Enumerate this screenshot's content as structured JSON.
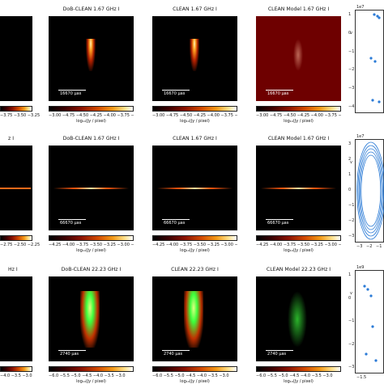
{
  "rows": [
    {
      "id": "row1",
      "titles": [
        "DoB-CLEAN 1.67 GHz I",
        "CLEAN 1.67 GHz I",
        "CLEAN Model 1.67 GHz I"
      ],
      "partial_title": "",
      "scalebar": "16670 μas",
      "cbar_ticks_left": "−3.75  −3.50  −3.25",
      "cbar_ticks": "−3.00 −4.75 −4.50 −4.25 −4.00 −3.75 −3.50 −3.25",
      "cbar_label": "log₁₀(Jy / pixel)",
      "uv_exponent": "1e7",
      "uv_yticks": [
        "1",
        "0",
        "−1",
        "−2",
        "−3",
        "−4"
      ],
      "uv_xticks": [],
      "uv_ylabel": "v"
    },
    {
      "id": "row2",
      "titles": [
        "DoB-CLEAN 1.67 GHz I",
        "CLEAN 1.67 GHz I",
        "CLEAN Model 1.67 GHz I"
      ],
      "partial_title": "z I",
      "scalebar": "66670 μas",
      "cbar_ticks_left": "−2.75  −2.50  −2.25",
      "cbar_ticks": "−4.25 −4.00 −3.75 −3.50 −3.25 −3.00 −2.75 −2.50 −2.25",
      "cbar_label": "log₁₀(Jy / pixel)",
      "uv_exponent": "1e7",
      "uv_yticks": [
        "3",
        "2",
        "1",
        "0",
        "−1",
        "−2",
        "−3"
      ],
      "uv_xticks": [
        "−3",
        "−2",
        "−1"
      ],
      "uv_ylabel": "v"
    },
    {
      "id": "row3",
      "titles": [
        "DoB-CLEAN 22.23 GHz I",
        "CLEAN 22.23 GHz I",
        "CLEAN Model 22.23 GHz I"
      ],
      "partial_title": "Hz I",
      "scalebar": "2740 μas",
      "cbar_ticks_left": "−4.0  −3.5  −3.0",
      "cbar_ticks": "−6.0 −5.5 −5.0 −4.5 −4.0 −3.5 −3.0",
      "cbar_label": "log₁₀(Jy / pixel)",
      "uv_exponent": "1e9",
      "uv_yticks": [
        "1",
        "0",
        "−1",
        "−2",
        "−3"
      ],
      "uv_xticks": [
        "−1.5"
      ],
      "uv_ylabel": "v"
    }
  ],
  "colors": {
    "background": "#000000",
    "model_bg_row1": "#6e0000",
    "uv_points": "#2b7bd6",
    "contour_green": "#3cff3c"
  }
}
